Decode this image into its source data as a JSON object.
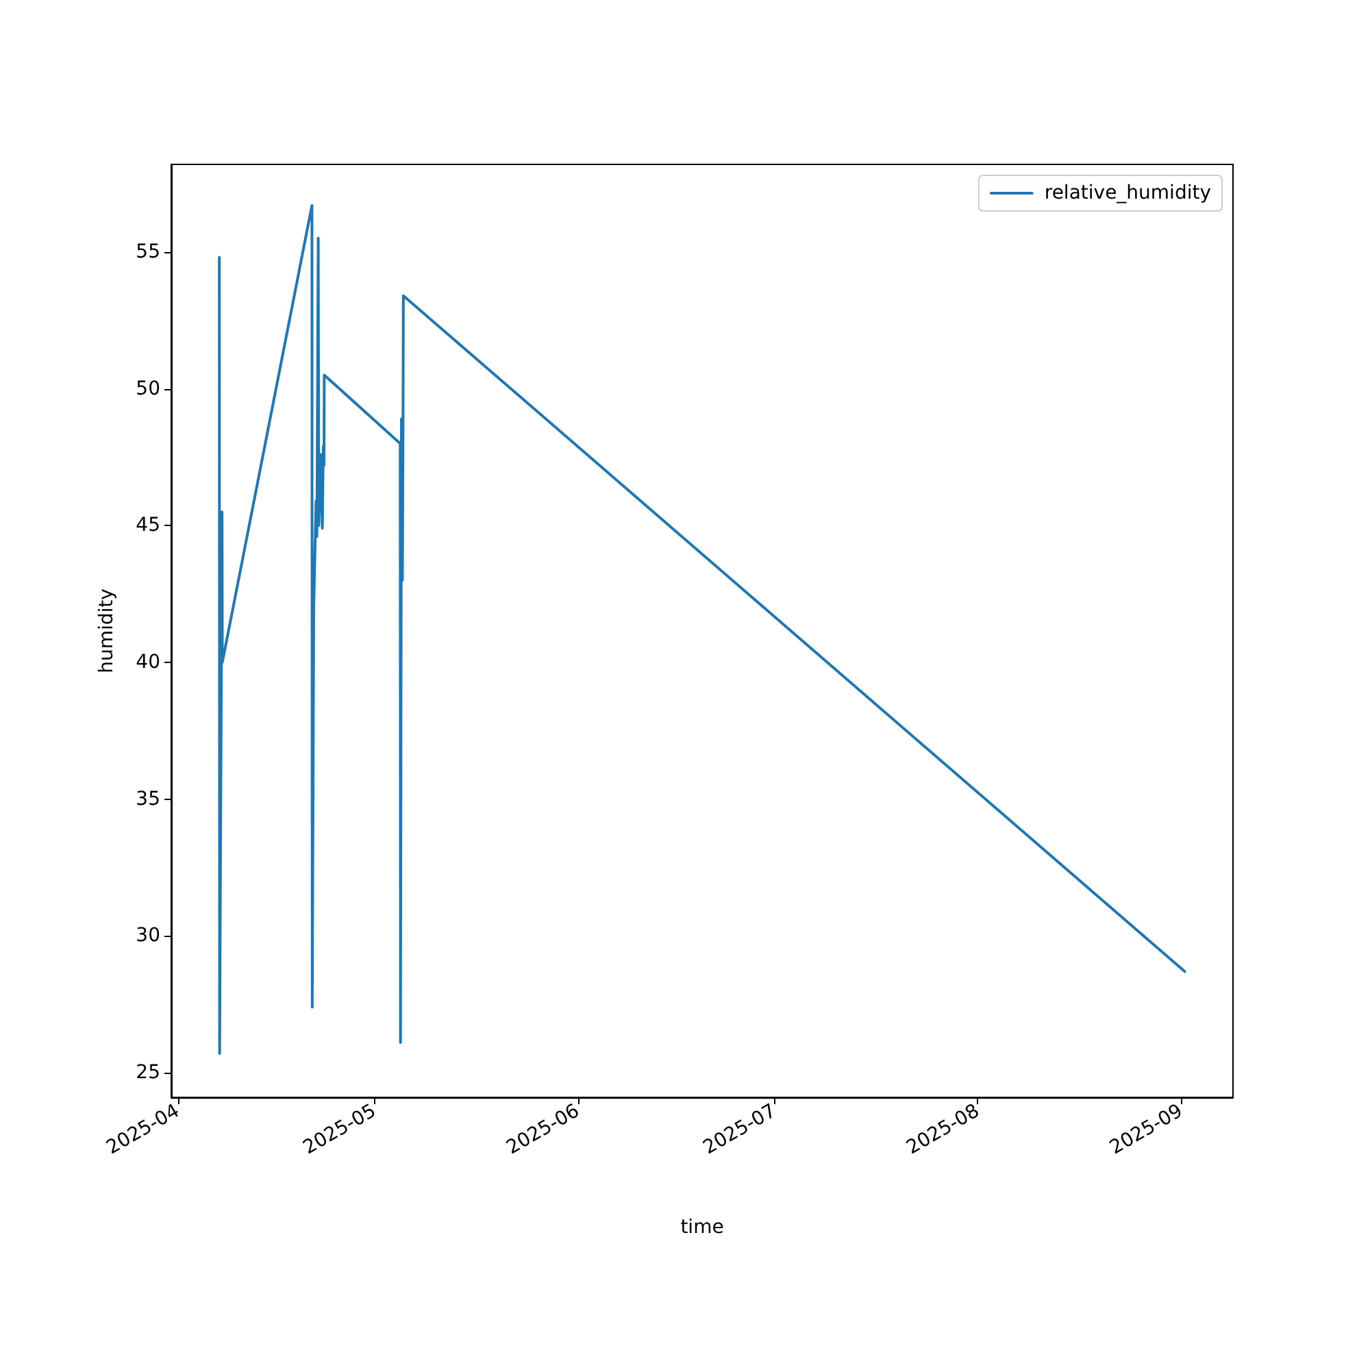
{
  "chart_data": {
    "type": "line",
    "xlabel": "time",
    "ylabel": "humidity",
    "x": [
      "2025-04-07T08:00",
      "2025-04-07T09:00",
      "2025-04-07T18:00",
      "2025-04-07T19:00",
      "2025-04-21T11:00",
      "2025-04-21T12:00",
      "2025-04-21T17:30",
      "2025-04-22T02:00",
      "2025-04-22T05:00",
      "2025-04-22T10:00",
      "2025-04-22T12:00",
      "2025-04-22T18:30",
      "2025-04-23T01:00",
      "2025-04-23T04:30",
      "2025-04-23T07:00",
      "2025-04-23T08:00",
      "2025-05-04T22:00",
      "2025-05-04T23:00",
      "2025-05-05T02:30",
      "2025-05-05T06:00",
      "2025-05-05T08:00",
      "2025-05-05T09:30",
      "2025-09-01T13:30"
    ],
    "series": [
      {
        "name": "relative_humidity",
        "color": "#1f77b4",
        "values": [
          54.8,
          25.7,
          45.5,
          40.0,
          56.7,
          27.4,
          42.0,
          45.9,
          44.6,
          55.5,
          45.0,
          47.6,
          44.9,
          47.9,
          47.2,
          50.5,
          48.0,
          26.1,
          48.9,
          43.0,
          47.6,
          53.4,
          28.7
        ]
      }
    ],
    "xlim": [
      "2025-03-31T00:00",
      "2025-09-08T22:00"
    ],
    "xticks": [
      "2025-04",
      "2025-05",
      "2025-06",
      "2025-07",
      "2025-08",
      "2025-09"
    ],
    "ylim": [
      24.1,
      58.2
    ],
    "yticks": [
      25,
      30,
      35,
      40,
      45,
      50,
      55
    ],
    "grid": false,
    "legend": "top right",
    "marker": "none",
    "line_style": "solid"
  }
}
